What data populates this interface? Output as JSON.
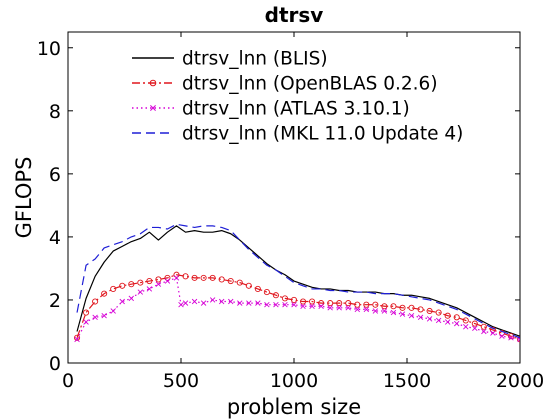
{
  "chart_data": {
    "type": "line",
    "title": "dtrsv",
    "xlabel": "problem size",
    "ylabel": "GFLOPS",
    "xlim": [
      0,
      2000
    ],
    "ylim": [
      0,
      10.5
    ],
    "xticks": [
      0,
      500,
      1000,
      1500,
      2000
    ],
    "yticks": [
      0,
      2,
      4,
      6,
      8,
      10
    ],
    "grid": false,
    "legend_position": "top",
    "series": [
      {
        "name": "dtrsv_lnn (BLIS)",
        "color": "#000000",
        "line_style": "solid",
        "marker": "none",
        "x": [
          40,
          80,
          120,
          160,
          200,
          240,
          280,
          320,
          360,
          400,
          440,
          480,
          520,
          560,
          600,
          640,
          680,
          720,
          760,
          800,
          840,
          880,
          920,
          960,
          1000,
          1040,
          1080,
          1120,
          1160,
          1200,
          1240,
          1280,
          1320,
          1360,
          1400,
          1440,
          1480,
          1520,
          1560,
          1600,
          1640,
          1680,
          1720,
          1760,
          1800,
          1840,
          1880,
          1920,
          1960,
          2000
        ],
        "y": [
          1.0,
          2.05,
          2.75,
          3.2,
          3.55,
          3.7,
          3.85,
          3.95,
          4.15,
          3.9,
          4.15,
          4.35,
          4.15,
          4.2,
          4.15,
          4.15,
          4.2,
          4.1,
          3.9,
          3.65,
          3.4,
          3.15,
          2.95,
          2.8,
          2.6,
          2.5,
          2.4,
          2.35,
          2.35,
          2.3,
          2.3,
          2.25,
          2.25,
          2.25,
          2.2,
          2.2,
          2.15,
          2.15,
          2.1,
          2.05,
          1.95,
          1.85,
          1.75,
          1.6,
          1.45,
          1.3,
          1.15,
          1.05,
          0.95,
          0.85
        ]
      },
      {
        "name": "dtrsv_lnn (OpenBLAS 0.2.6)",
        "color": "#e0161d",
        "line_style": "dashdot",
        "marker": "circle",
        "x": [
          40,
          80,
          120,
          160,
          200,
          240,
          280,
          320,
          360,
          400,
          440,
          480,
          520,
          560,
          600,
          640,
          680,
          720,
          760,
          800,
          840,
          880,
          920,
          960,
          1000,
          1040,
          1080,
          1120,
          1160,
          1200,
          1240,
          1280,
          1320,
          1360,
          1400,
          1440,
          1480,
          1520,
          1560,
          1600,
          1640,
          1680,
          1720,
          1760,
          1800,
          1840,
          1880,
          1920,
          1960,
          2000
        ],
        "y": [
          0.8,
          1.6,
          1.95,
          2.2,
          2.35,
          2.45,
          2.5,
          2.55,
          2.6,
          2.65,
          2.7,
          2.8,
          2.75,
          2.7,
          2.7,
          2.7,
          2.65,
          2.6,
          2.55,
          2.45,
          2.35,
          2.25,
          2.15,
          2.05,
          2.0,
          1.95,
          1.95,
          1.9,
          1.9,
          1.9,
          1.9,
          1.85,
          1.85,
          1.85,
          1.8,
          1.8,
          1.75,
          1.75,
          1.7,
          1.65,
          1.6,
          1.5,
          1.45,
          1.35,
          1.25,
          1.15,
          1.05,
          0.95,
          0.85,
          0.75
        ]
      },
      {
        "name": "dtrsv_lnn (ATLAS 3.10.1)",
        "color": "#d600d6",
        "line_style": "dotted",
        "marker": "x",
        "x": [
          40,
          80,
          120,
          160,
          200,
          240,
          280,
          320,
          360,
          400,
          440,
          480,
          500,
          520,
          560,
          600,
          640,
          680,
          720,
          760,
          800,
          840,
          880,
          920,
          960,
          1000,
          1040,
          1080,
          1120,
          1160,
          1200,
          1240,
          1280,
          1320,
          1360,
          1400,
          1440,
          1480,
          1520,
          1560,
          1600,
          1640,
          1680,
          1720,
          1760,
          1800,
          1840,
          1880,
          1920,
          1960,
          2000
        ],
        "y": [
          0.75,
          1.3,
          1.45,
          1.5,
          1.65,
          1.95,
          2.05,
          2.25,
          2.35,
          2.5,
          2.6,
          2.7,
          1.85,
          1.9,
          1.95,
          1.9,
          2.0,
          1.95,
          1.95,
          1.9,
          1.9,
          1.9,
          1.85,
          1.85,
          1.85,
          1.85,
          1.8,
          1.8,
          1.8,
          1.75,
          1.75,
          1.75,
          1.7,
          1.7,
          1.65,
          1.65,
          1.6,
          1.55,
          1.5,
          1.45,
          1.4,
          1.35,
          1.3,
          1.25,
          1.15,
          1.1,
          1.0,
          0.95,
          0.85,
          0.8,
          0.75
        ]
      },
      {
        "name": "dtrsv_lnn (MKL 11.0 Update 4)",
        "color": "#1f1fd6",
        "line_style": "dashed",
        "marker": "none",
        "x": [
          40,
          80,
          120,
          160,
          200,
          240,
          280,
          320,
          360,
          400,
          440,
          480,
          520,
          560,
          600,
          640,
          680,
          720,
          760,
          800,
          840,
          880,
          920,
          960,
          1000,
          1040,
          1080,
          1120,
          1160,
          1200,
          1240,
          1280,
          1320,
          1360,
          1400,
          1440,
          1480,
          1520,
          1560,
          1600,
          1640,
          1680,
          1720,
          1760,
          1800,
          1840,
          1880,
          1920,
          1960,
          2000
        ],
        "y": [
          1.6,
          3.1,
          3.3,
          3.65,
          3.75,
          3.85,
          4.0,
          4.1,
          4.3,
          4.3,
          4.25,
          4.4,
          4.35,
          4.3,
          4.35,
          4.35,
          4.3,
          4.2,
          3.9,
          3.6,
          3.35,
          3.1,
          2.95,
          2.75,
          2.55,
          2.45,
          2.35,
          2.35,
          2.3,
          2.3,
          2.25,
          2.25,
          2.25,
          2.2,
          2.2,
          2.2,
          2.15,
          2.1,
          2.05,
          2.0,
          1.9,
          1.8,
          1.7,
          1.55,
          1.4,
          1.25,
          1.1,
          1.0,
          0.9,
          0.8
        ]
      }
    ]
  }
}
